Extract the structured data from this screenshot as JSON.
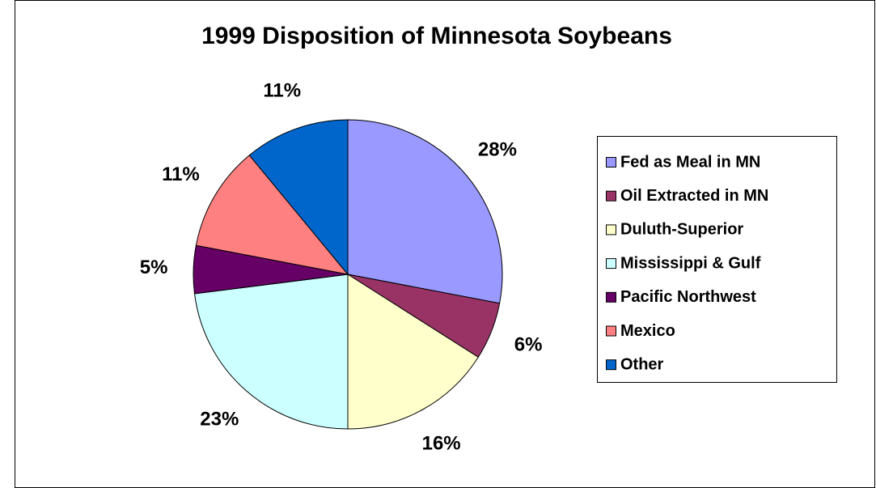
{
  "chart_data": {
    "type": "pie",
    "title": "1999 Disposition of Minnesota Soybeans",
    "categories": [
      "Fed as Meal in MN",
      "Oil Extracted in MN",
      "Duluth-Superior",
      "Mississippi & Gulf",
      "Pacific Northwest",
      "Mexico",
      "Other"
    ],
    "values": [
      28,
      6,
      16,
      23,
      5,
      11,
      11
    ],
    "value_labels": [
      "28%",
      "6%",
      "16%",
      "23%",
      "5%",
      "11%",
      "11%"
    ],
    "colors": [
      "#9999ff",
      "#993366",
      "#ffffcc",
      "#ccffff",
      "#660066",
      "#ff8080",
      "#0066cc"
    ],
    "legend": "right"
  }
}
